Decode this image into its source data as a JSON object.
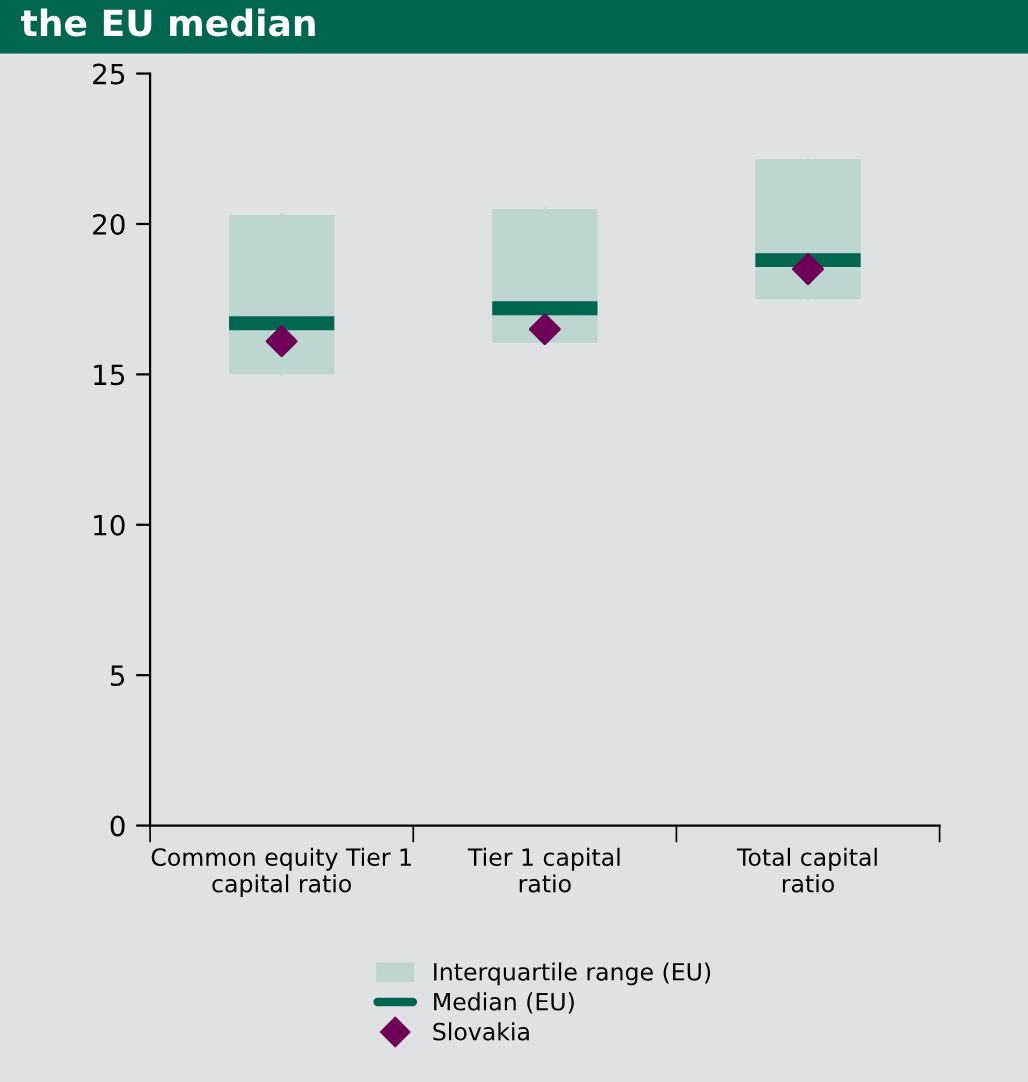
{
  "chart_data": {
    "type": "box",
    "title": "the EU median",
    "categories": [
      "Common equity Tier 1\ncapital ratio",
      "Tier 1 capital\nratio",
      "Total capital\nratio"
    ],
    "series": [
      {
        "name": "Interquartile range (EU)",
        "color": "#bdd6cf",
        "boxes": [
          {
            "low": 15.0,
            "q1": 15.0,
            "median": 16.7,
            "q3": 20.3,
            "high": 20.3
          },
          {
            "low": 16.05,
            "q1": 16.05,
            "median": 17.2,
            "q3": 20.5,
            "high": 20.5
          },
          {
            "low": 17.5,
            "q1": 17.5,
            "median": 18.8,
            "q3": 22.15,
            "high": 22.15
          }
        ]
      },
      {
        "type": "scatter",
        "name": "Slovakia",
        "color": "#6e0058",
        "marker": "diamond",
        "values": [
          16.1,
          16.5,
          18.5
        ]
      }
    ],
    "annotations": [
      "Median (EU)"
    ],
    "ylim": [
      0,
      25
    ],
    "yticks": [
      0,
      5,
      10,
      15,
      20,
      25
    ],
    "grid": false,
    "legend": "bottom"
  }
}
